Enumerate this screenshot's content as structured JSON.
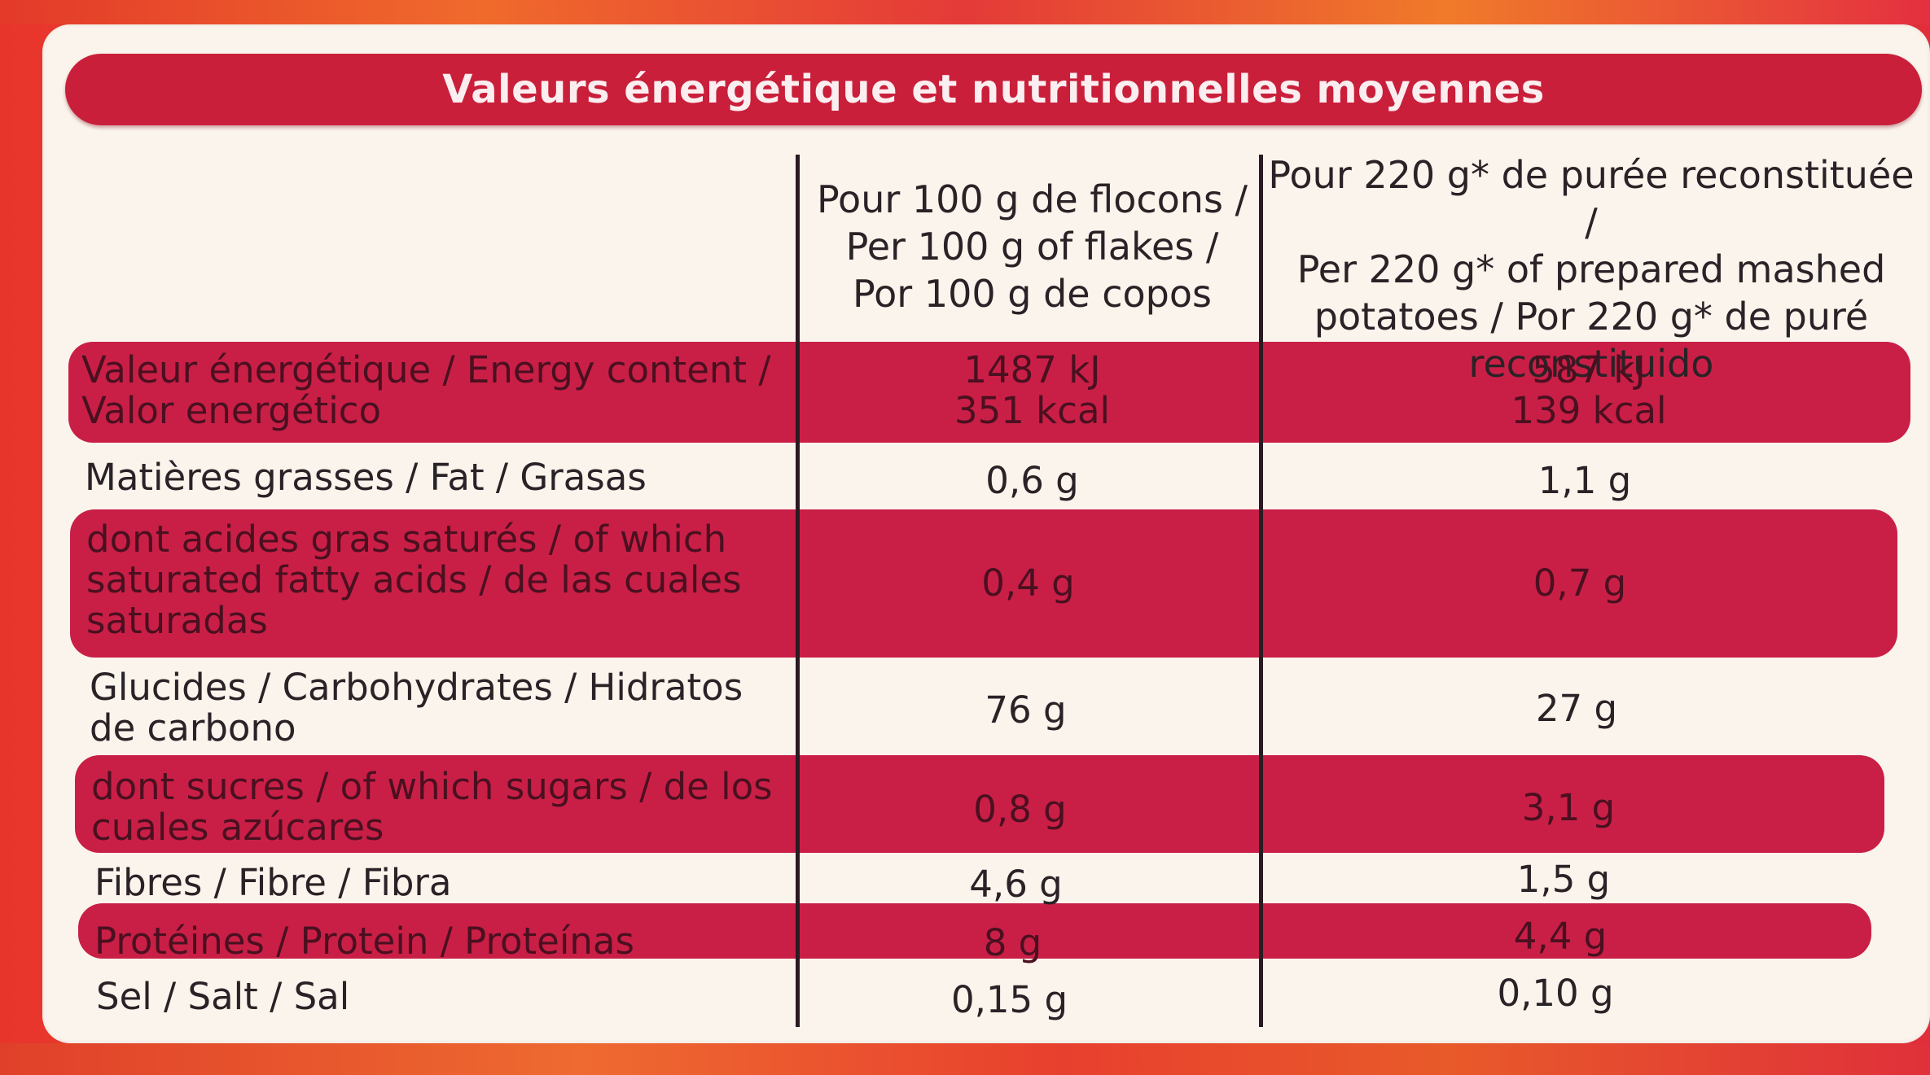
{
  "title": "Valeurs énergétique et nutritionnelles moyennes",
  "columns": {
    "col1": [
      "Pour 100 g de flocons /",
      "Per 100 g of flakes /",
      "Por 100 g de copos"
    ],
    "col2": [
      "Pour 220 g* de purée reconstituée /",
      "Per 220 g* of prepared mashed",
      "potatoes / Por 220 g* de puré",
      "reconstituido"
    ]
  },
  "rows": [
    {
      "label": [
        "Valeur énergétique / Energy content /",
        "Valor energético"
      ],
      "v1": [
        "1487 kJ",
        "351 kcal"
      ],
      "v2": [
        "587 kJ",
        "139 kcal"
      ]
    },
    {
      "label": [
        "Matières grasses / Fat / Grasas"
      ],
      "v1": [
        "0,6 g"
      ],
      "v2": [
        "1,1 g"
      ]
    },
    {
      "label": [
        "dont acides gras saturés / of which",
        "saturated fatty acids / de las cuales",
        "saturadas"
      ],
      "v1": [
        "0,4 g"
      ],
      "v2": [
        "0,7 g"
      ]
    },
    {
      "label": [
        "Glucides / Carbohydrates / Hidratos",
        "de carbono"
      ],
      "v1": [
        "76 g"
      ],
      "v2": [
        "27 g"
      ]
    },
    {
      "label": [
        "dont sucres / of which sugars / de los",
        "cuales azúcares"
      ],
      "v1": [
        "0,8 g"
      ],
      "v2": [
        "3,1 g"
      ]
    },
    {
      "label": [
        "Fibres / Fibre / Fibra"
      ],
      "v1": [
        "4,6 g"
      ],
      "v2": [
        "1,5 g"
      ]
    },
    {
      "label": [
        "Protéines / Protein / Proteínas"
      ],
      "v1": [
        "8 g"
      ],
      "v2": [
        "4,4 g"
      ]
    },
    {
      "label": [
        "Sel / Salt / Sal"
      ],
      "v1": [
        "0,15 g"
      ],
      "v2": [
        "0,10 g"
      ]
    }
  ],
  "colors": {
    "band": "#c91f47",
    "panel": "#faf4ec",
    "frame": "#e8352c"
  }
}
